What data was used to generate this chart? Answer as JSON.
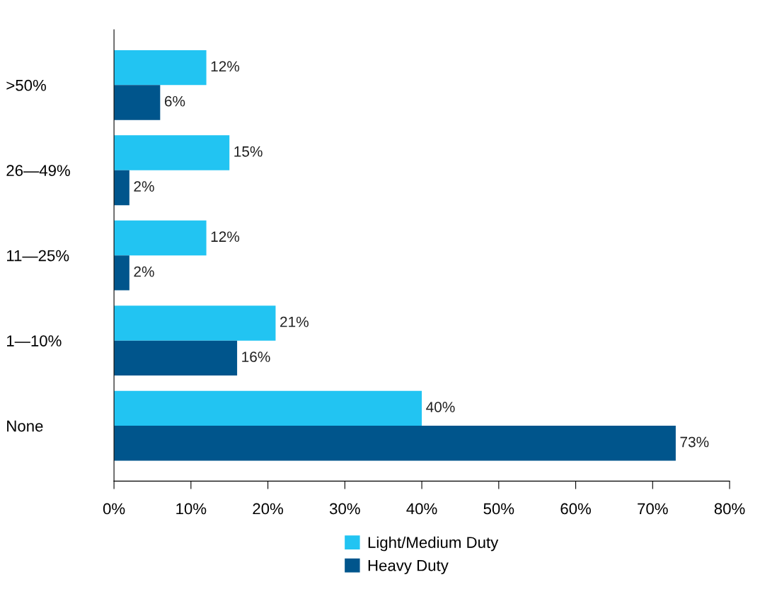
{
  "chart_data": {
    "type": "bar",
    "orientation": "horizontal",
    "categories": [
      ">50%",
      "26—49%",
      "11—25%",
      "1—10%",
      "None"
    ],
    "series": [
      {
        "name": "Light/Medium Duty",
        "color": "#22c4f2",
        "values": [
          12,
          15,
          12,
          21,
          40
        ],
        "value_labels": [
          "12%",
          "15%",
          "12%",
          "21%",
          "40%"
        ]
      },
      {
        "name": "Heavy Duty",
        "color": "#00558c",
        "values": [
          6,
          2,
          2,
          16,
          73
        ],
        "value_labels": [
          "6%",
          "2%",
          "2%",
          "16%",
          "73%"
        ]
      }
    ],
    "xlim": [
      0,
      80
    ],
    "xticks": [
      {
        "value": 0,
        "label": "0%"
      },
      {
        "value": 10,
        "label": "10%"
      },
      {
        "value": 20,
        "label": "20%"
      },
      {
        "value": 30,
        "label": "30%"
      },
      {
        "value": 40,
        "label": "40%"
      },
      {
        "value": 50,
        "label": "50%"
      },
      {
        "value": 60,
        "label": "60%"
      },
      {
        "value": 70,
        "label": "70%"
      },
      {
        "value": 80,
        "label": "80%"
      }
    ],
    "grid": false,
    "legend": "bottom"
  }
}
